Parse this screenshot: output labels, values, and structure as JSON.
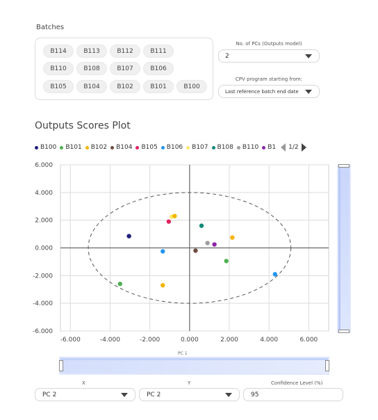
{
  "batches": {
    "title": "Batches",
    "chips": [
      [
        "B114",
        "B113",
        "B112",
        "B111"
      ],
      [
        "B110",
        "B108",
        "B107",
        "B106"
      ],
      [
        "B105",
        "B104",
        "B102",
        "B101",
        "B100"
      ]
    ]
  },
  "controls": {
    "pcs_label": "No. of PCs (Outputs model)",
    "pcs_value": "2",
    "cpv_label": "CPV program starting from:",
    "cpv_value": "Last reference batch end date"
  },
  "plot": {
    "title": "Outputs Scores Plot",
    "legend_page": "1/2",
    "x_axis_label": "PC 1"
  },
  "bottom": {
    "x_label": "X",
    "x_value": "PC 2",
    "y_label": "Y",
    "y_value": "PC 2",
    "confidence_label": "Confidence Level (%)",
    "confidence_value": "95"
  },
  "chart_data": {
    "type": "scatter",
    "xlabel": "PC 1",
    "ylabel": "",
    "xlim": [
      -6.5,
      7.0
    ],
    "ylim": [
      -6.0,
      6.0
    ],
    "x_ticks": [
      "-6.000",
      "-4.000",
      "-2.000",
      "0.000",
      "2.000",
      "4.000",
      "6.000"
    ],
    "x_tick_values": [
      -6,
      -4,
      -2,
      0,
      2,
      4,
      6
    ],
    "y_ticks": [
      "6.000",
      "4.000",
      "2.000",
      "0.000",
      "-2.000",
      "-4.000",
      "-6.000"
    ],
    "y_tick_values": [
      6,
      4,
      2,
      0,
      -2,
      -4,
      -6
    ],
    "grid": true,
    "legend_position": "top-left",
    "confidence_ellipse": {
      "rx": 5.1,
      "ry": 4.0
    },
    "series": [
      {
        "name": "B100",
        "color": "#1f1f7a",
        "x": -3.05,
        "y": 0.85
      },
      {
        "name": "B101",
        "color": "#4caf50",
        "x": 1.85,
        "y": -0.95
      },
      {
        "name": "B102",
        "color": "#f5b400",
        "x": 2.15,
        "y": 0.75
      },
      {
        "name": "B104",
        "color": "#6d4c41",
        "x": 0.3,
        "y": -0.2
      },
      {
        "name": "B105",
        "color": "#e0245e",
        "x": -1.05,
        "y": 1.9
      },
      {
        "name": "B106",
        "color": "#2196f3",
        "x": -1.35,
        "y": -0.25
      },
      {
        "name": "B107",
        "color": "#ffe66b",
        "x": -0.9,
        "y": 2.25
      },
      {
        "name": "B108",
        "color": "#11897a",
        "x": 0.6,
        "y": 1.6
      },
      {
        "name": "B110",
        "color": "#9e9e9e",
        "x": 0.9,
        "y": 0.35
      },
      {
        "name": "B1",
        "color": "#8e24aa",
        "x": 1.25,
        "y": 0.25
      },
      {
        "name": "",
        "color": "#4caf50",
        "x": -3.5,
        "y": -2.6
      },
      {
        "name": "",
        "color": "#f5b400",
        "x": -1.35,
        "y": -2.7
      },
      {
        "name": "",
        "color": "#2196f3",
        "x": 4.3,
        "y": -1.9
      },
      {
        "name": "",
        "color": "#f5b400",
        "x": -0.75,
        "y": 2.3
      }
    ]
  }
}
